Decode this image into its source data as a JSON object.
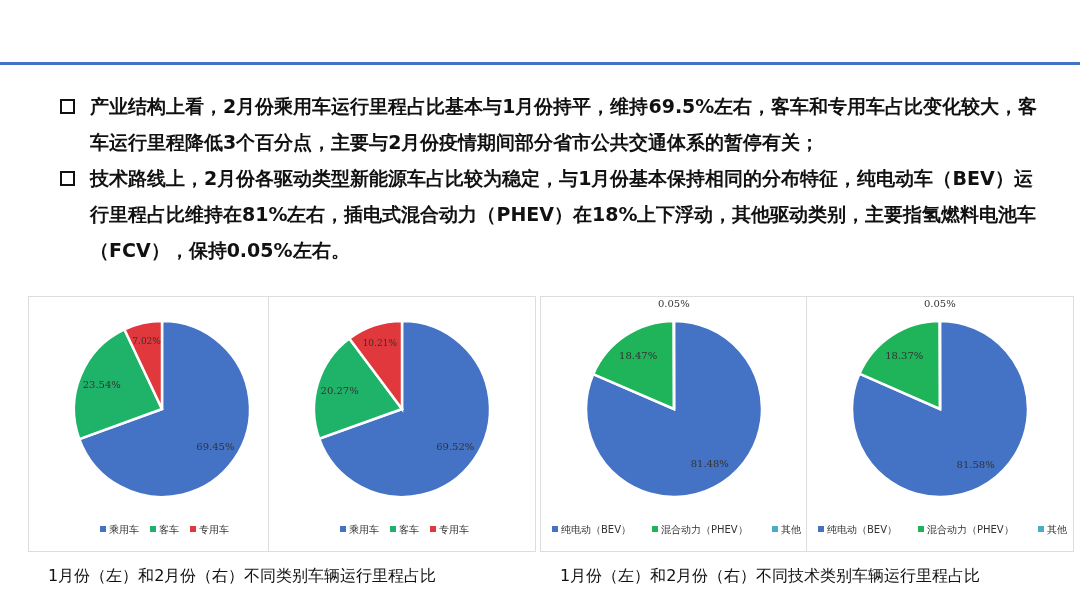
{
  "chart_data": [
    {
      "type": "other",
      "annotations": [
        "产业结构上看，2月份乘用车运行里程占比基本与1月份持平，维持69.5%左右，客车和专用车占比变化较大，客车运行里程降低3个百分点，主要与2月份疫情期间部分省市公共交通体系的暂停有关；",
        "技术路线上，2月份各驱动类型新能源车占比较为稳定，与1月份基本保持相同的分布特征，纯电动车（BEV）运行里程占比维持在81%左右，插电式混合动力（PHEV）在18%上下浮动，其他驱动类别，主要指氢燃料电池车（FCV），保持0.05%左右。"
      ]
    },
    {
      "type": "pie",
      "categories": [
        "乘用车",
        "客车",
        "专用车"
      ],
      "values": [
        69.45,
        23.54,
        7.02
      ],
      "value_labels": [
        "69.45%",
        "23.54%",
        "7.02%"
      ],
      "colors": [
        "#4472c4",
        "#1fb36a",
        "#e0383c"
      ],
      "legend": "bottom",
      "annotations": [
        "1月份（左）和2月份（右）不同类别车辆运行里程占比"
      ]
    },
    {
      "type": "pie",
      "categories": [
        "乘用车",
        "客车",
        "专用车"
      ],
      "values": [
        69.52,
        20.27,
        10.21
      ],
      "value_labels": [
        "69.52%",
        "20.27%",
        "10.21%"
      ],
      "colors": [
        "#4472c4",
        "#1fb36a",
        "#e0383c"
      ],
      "legend": "bottom"
    },
    {
      "type": "pie",
      "categories": [
        "纯电动（BEV）",
        "混合动力（PHEV）",
        "其他"
      ],
      "values": [
        81.48,
        18.47,
        0.05
      ],
      "value_labels": [
        "81.48%",
        "18.47%",
        "0.05%"
      ],
      "colors": [
        "#4472c4",
        "#1fb35a",
        "#4bacc6"
      ],
      "legend": "bottom",
      "annotations": [
        "1月份（左）和2月份（右）不同技术类别车辆运行里程占比"
      ]
    },
    {
      "type": "pie",
      "categories": [
        "纯电动（BEV）",
        "混合动力（PHEV）",
        "其他"
      ],
      "values": [
        81.58,
        18.37,
        0.05
      ],
      "value_labels": [
        "81.58%",
        "18.37%",
        "0.05%"
      ],
      "colors": [
        "#4472c4",
        "#1fb35a",
        "#4bacc6"
      ],
      "legend": "bottom"
    }
  ]
}
